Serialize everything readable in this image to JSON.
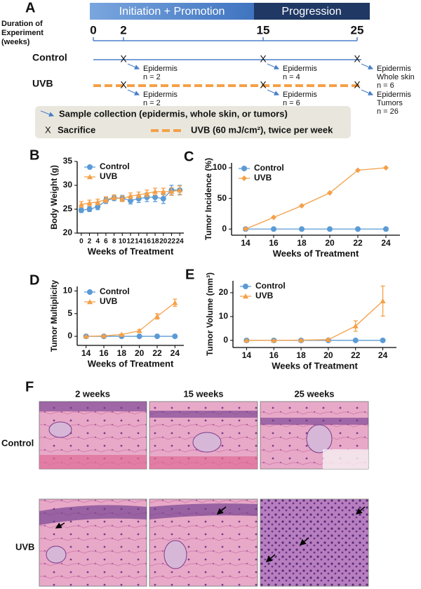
{
  "panel_a": {
    "label": "A",
    "phases": [
      "Initiation + Promotion",
      "Progression"
    ],
    "duration_label": [
      "Duration of",
      "Experiment",
      "(weeks)"
    ],
    "weeks": [
      0,
      2,
      15,
      25
    ],
    "groups": [
      {
        "name": "Control",
        "samples": [
          [
            "Epidermis",
            "n = 2"
          ],
          [
            "Epidermis",
            "n = 4"
          ],
          [
            "Epidermis",
            "Whole skin",
            "n = 6"
          ]
        ]
      },
      {
        "name": "UVB",
        "samples": [
          [
            "Epidermis",
            "n = 2"
          ],
          [
            "Epidermis",
            "n = 6"
          ],
          [
            "Epidermis",
            "Tumors",
            "n = 26"
          ]
        ]
      }
    ],
    "legend": {
      "sample": "Sample collection (epidermis, whole skin, or tumors)",
      "sacrifice_symbol": "X",
      "sacrifice": "Sacrifice",
      "uvb": "UVB (60 mJ/cm²), twice per week"
    }
  },
  "chart_data": [
    {
      "type": "line",
      "panel_label": "B",
      "y_label": "Body Weight (g)",
      "x_label": "Weeks of Treatment",
      "legend": "upper left",
      "x": [
        0,
        2,
        4,
        6,
        8,
        10,
        12,
        14,
        16,
        18,
        20,
        22,
        24
      ],
      "xlim": [
        -1,
        25
      ],
      "xticks": [
        0,
        2,
        4,
        6,
        8,
        10,
        12,
        14,
        16,
        18,
        20,
        22,
        24
      ],
      "ylim": [
        20,
        35
      ],
      "yticks": [
        20,
        25,
        30,
        35
      ],
      "series": [
        {
          "name": "Control",
          "color": "#5b9bd5",
          "marker": "circle",
          "values": [
            24.8,
            25.0,
            25.5,
            26.8,
            27.3,
            27.3,
            26.8,
            27.2,
            27.5,
            27.5,
            27.2,
            29.0,
            29.0
          ],
          "errors": [
            0.5,
            0.5,
            0.6,
            0.6,
            0.5,
            0.6,
            0.7,
            0.8,
            0.9,
            0.9,
            1.0,
            1.0,
            1.0
          ]
        },
        {
          "name": "UVB",
          "color": "#f4a048",
          "marker": "triangle",
          "values": [
            26.0,
            26.3,
            26.5,
            27.0,
            27.5,
            27.2,
            27.8,
            28.0,
            28.3,
            28.7,
            28.7,
            28.7,
            29.0
          ],
          "errors": [
            0.6,
            0.6,
            0.6,
            0.6,
            0.5,
            0.6,
            0.6,
            0.6,
            0.7,
            0.7,
            0.7,
            0.8,
            0.9
          ]
        }
      ]
    },
    {
      "type": "line",
      "panel_label": "C",
      "y_label": "Tumor Incidence (%)",
      "x_label": "Weeks of Treatment",
      "legend": "upper left",
      "x": [
        14,
        16,
        18,
        20,
        22,
        24
      ],
      "xlim": [
        13,
        25
      ],
      "xticks": [
        14,
        16,
        18,
        20,
        22,
        24
      ],
      "ylim": [
        -10,
        108
      ],
      "yticks": [
        0,
        50,
        100
      ],
      "series": [
        {
          "name": "Control",
          "color": "#5b9bd5",
          "marker": "circle",
          "values": [
            0,
            0,
            0,
            0,
            0,
            0
          ]
        },
        {
          "name": "UVB",
          "color": "#f4a048",
          "marker": "diamond",
          "values": [
            0,
            19,
            38,
            59,
            96,
            100
          ]
        }
      ]
    },
    {
      "type": "line",
      "panel_label": "D",
      "y_label": "Tumor Multiplicity",
      "x_label": "Weeks of Treatment",
      "legend": "upper left",
      "x": [
        14,
        16,
        18,
        20,
        22,
        24
      ],
      "xlim": [
        13,
        25
      ],
      "xticks": [
        14,
        16,
        18,
        20,
        22,
        24
      ],
      "ylim": [
        -2,
        11
      ],
      "yticks": [
        0,
        5,
        10
      ],
      "series": [
        {
          "name": "Control",
          "color": "#5b9bd5",
          "marker": "circle",
          "values": [
            0,
            0,
            0,
            0,
            0,
            0
          ],
          "errors": [
            0,
            0,
            0,
            0,
            0,
            0
          ]
        },
        {
          "name": "UVB",
          "color": "#f4a048",
          "marker": "triangle",
          "values": [
            0,
            0.1,
            0.4,
            1.2,
            4.4,
            7.4
          ],
          "errors": [
            0,
            0.05,
            0.1,
            0.3,
            0.6,
            0.8
          ]
        }
      ]
    },
    {
      "type": "line",
      "panel_label": "E",
      "y_label": "Tumor Volume (mm³)",
      "x_label": "Weeks of Treatment",
      "legend": "upper left",
      "x": [
        14,
        16,
        18,
        20,
        22,
        24
      ],
      "xlim": [
        13,
        25
      ],
      "xticks": [
        14,
        16,
        18,
        20,
        22,
        24
      ],
      "ylim": [
        -3,
        25
      ],
      "yticks": [
        0,
        10,
        20
      ],
      "series": [
        {
          "name": "Control",
          "color": "#5b9bd5",
          "marker": "circle",
          "values": [
            0,
            0,
            0,
            0,
            0,
            0
          ],
          "errors": [
            0,
            0,
            0,
            0,
            0,
            0
          ]
        },
        {
          "name": "UVB",
          "color": "#f4a048",
          "marker": "triangle",
          "values": [
            0,
            0,
            0.1,
            0.3,
            6,
            16.5
          ],
          "errors": [
            0,
            0,
            0.1,
            0.3,
            2.2,
            6.3
          ]
        }
      ]
    }
  ],
  "panel_f": {
    "label": "F",
    "columns": [
      "2 weeks",
      "15 weeks",
      "25 weeks"
    ],
    "rows": [
      "Control",
      "UVB"
    ]
  }
}
